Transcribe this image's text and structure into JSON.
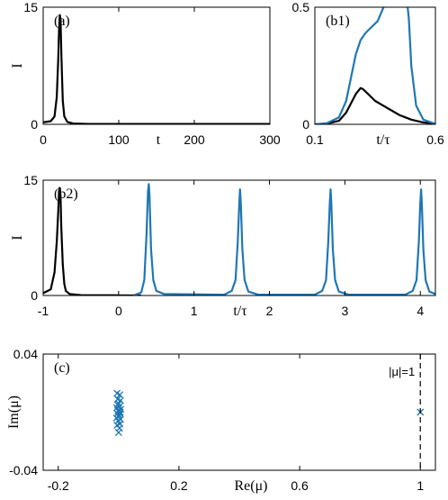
{
  "colors": {
    "black": "#000000",
    "blue": "#1f77b4"
  },
  "chart_data": [
    {
      "id": "a",
      "type": "line",
      "panel_label": "(a)",
      "xlabel": "t",
      "ylabel": "I",
      "xlim": [
        0,
        300
      ],
      "ylim": [
        0,
        15
      ],
      "xticks": [
        0,
        100,
        200,
        300
      ],
      "yticks": [
        0,
        15
      ],
      "series": [
        {
          "color": "black",
          "x": [
            0,
            10,
            15,
            18,
            20,
            21,
            22,
            23,
            24,
            26,
            28,
            32,
            40,
            60,
            300
          ],
          "y": [
            0.25,
            0.4,
            1.0,
            3.5,
            8.5,
            12,
            14,
            13.5,
            9,
            3,
            1,
            0.3,
            0.1,
            0.05,
            0.05
          ]
        }
      ]
    },
    {
      "id": "b1",
      "type": "line",
      "panel_label": "(b1)",
      "xlabel": "t/τ",
      "ylabel": "",
      "xlim": [
        0.1,
        0.6
      ],
      "ylim": [
        0,
        0.5
      ],
      "xticks": [
        0.1,
        0.6
      ],
      "yticks": [
        0,
        0.5
      ],
      "series": [
        {
          "color": "black",
          "x": [
            0.1,
            0.15,
            0.2,
            0.23,
            0.25,
            0.27,
            0.29,
            0.3,
            0.32,
            0.35,
            0.4,
            0.45,
            0.5,
            0.55,
            0.6
          ],
          "y": [
            0,
            0.003,
            0.015,
            0.05,
            0.09,
            0.13,
            0.155,
            0.15,
            0.13,
            0.1,
            0.07,
            0.04,
            0.02,
            0.008,
            0.003
          ]
        },
        {
          "color": "blue",
          "x": [
            0.1,
            0.15,
            0.2,
            0.23,
            0.25,
            0.27,
            0.29,
            0.31,
            0.33,
            0.36,
            0.385,
            0.395,
            0.48,
            0.49,
            0.5,
            0.52,
            0.55,
            0.6
          ],
          "y": [
            0,
            0.005,
            0.03,
            0.1,
            0.2,
            0.3,
            0.36,
            0.39,
            0.41,
            0.44,
            0.5,
            0.55,
            0.55,
            0.45,
            0.25,
            0.08,
            0.02,
            0.002
          ]
        }
      ]
    },
    {
      "id": "b2",
      "type": "line",
      "panel_label": "(b2)",
      "xlabel": "t/τ",
      "ylabel": "I",
      "xlim": [
        -1,
        4.2
      ],
      "ylim": [
        0,
        15
      ],
      "xticks": [
        -1,
        0,
        1,
        2,
        3,
        4
      ],
      "yticks": [
        0,
        15
      ],
      "series": [
        {
          "color": "black",
          "x": [
            -1,
            -0.9,
            -0.85,
            -0.82,
            -0.8,
            -0.79,
            -0.78,
            -0.77,
            -0.76,
            -0.74,
            -0.72,
            -0.7,
            -0.65,
            -0.5,
            0,
            0.3
          ],
          "y": [
            0.3,
            0.8,
            3,
            7,
            11,
            13.5,
            14,
            13,
            9,
            4,
            1.5,
            0.6,
            0.2,
            0.05,
            0.02,
            0
          ]
        },
        {
          "color": "blue",
          "x": [
            0.2,
            0.3,
            0.34,
            0.37,
            0.39,
            0.4,
            0.41,
            0.43,
            0.46,
            0.5,
            0.6,
            1.4,
            1.5,
            1.55,
            1.58,
            1.6,
            1.61,
            1.62,
            1.64,
            1.67,
            1.72,
            1.85,
            2.6,
            2.7,
            2.75,
            2.78,
            2.8,
            2.81,
            2.82,
            2.84,
            2.87,
            2.92,
            3.05,
            3.8,
            3.9,
            3.95,
            3.98,
            4.0,
            4.01,
            4.02,
            4.04,
            4.07,
            4.12,
            4.2
          ],
          "y": [
            0,
            0.4,
            2,
            8,
            13.5,
            14.5,
            13,
            6,
            2,
            0.6,
            0.2,
            0.1,
            0.6,
            2,
            7,
            12,
            13.8,
            12,
            6,
            2,
            0.5,
            0.1,
            0.1,
            0.6,
            2,
            7,
            12,
            13.8,
            12,
            6,
            2,
            0.5,
            0.1,
            0.1,
            0.6,
            2,
            7,
            12,
            13.8,
            12,
            6,
            2,
            0.5,
            0.2
          ]
        }
      ]
    },
    {
      "id": "c",
      "type": "scatter",
      "panel_label": "(c)",
      "xlabel": "Re(μ)",
      "ylabel": "Im(μ)",
      "xlim": [
        -0.25,
        1.05
      ],
      "ylim": [
        -0.04,
        0.04
      ],
      "xticks": [
        -0.2,
        0.2,
        0.6,
        1
      ],
      "yticks": [
        0.04,
        -0.04
      ],
      "annotation": "|μ|=1",
      "unit_circle_x": 1,
      "points": {
        "color": "blue",
        "x": [
          -0.005,
          0.004,
          -0.003,
          0.006,
          0.0,
          0.003,
          -0.006,
          0.007,
          -0.002,
          0.005,
          -0.004,
          0.002,
          0.0,
          -0.007,
          0.006,
          -0.001,
          0.004,
          -0.005,
          0.003,
          0.0,
          -0.003,
          0.005,
          1.0
        ],
        "y": [
          0.013,
          0.012,
          0.009,
          0.008,
          0.006,
          0.004,
          0.003,
          0.002,
          0.001,
          0.0,
          -0.001,
          -0.002,
          -0.003,
          -0.004,
          -0.005,
          -0.006,
          -0.008,
          -0.009,
          -0.011,
          -0.014,
          0.005,
          -0.001,
          0.0
        ]
      }
    }
  ]
}
